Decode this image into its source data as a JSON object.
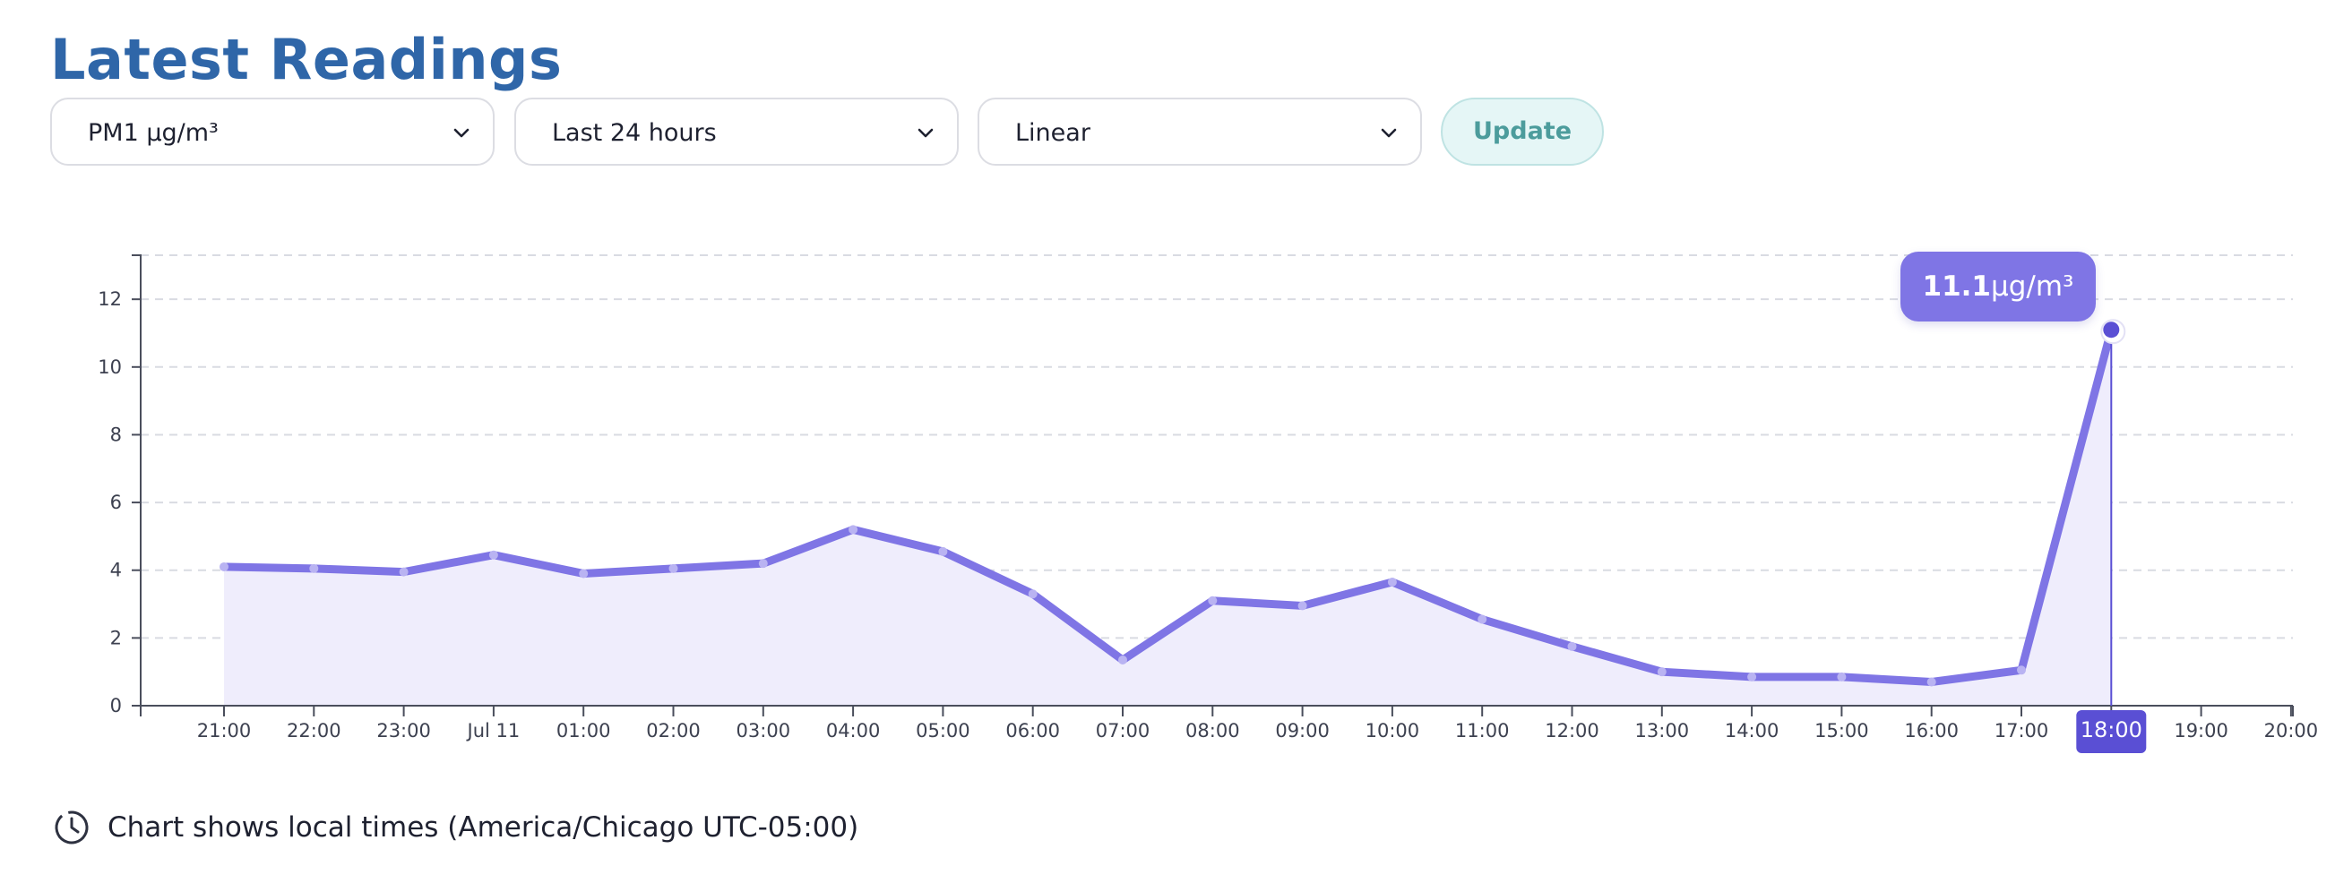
{
  "page": {
    "title": "Latest Readings"
  },
  "controls": {
    "metric": "PM1 µg/m³",
    "range": "Last 24 hours",
    "scale": "Linear",
    "update_label": "Update"
  },
  "tooltip": {
    "value": "11.1",
    "unit": "µg/m³"
  },
  "footer": {
    "note": "Chart shows local times (America/Chicago UTC-05:00)"
  },
  "colors": {
    "line": "#7f75e5",
    "fill": "#efedfc",
    "title": "#2f66a8",
    "highlight": "#5a4fd4"
  },
  "chart_data": {
    "type": "area",
    "x_ticks": [
      "21:00",
      "22:00",
      "23:00",
      "Jul 11",
      "01:00",
      "02:00",
      "03:00",
      "04:00",
      "05:00",
      "06:00",
      "07:00",
      "08:00",
      "09:00",
      "10:00",
      "11:00",
      "12:00",
      "13:00",
      "14:00",
      "15:00",
      "16:00",
      "17:00",
      "18:00",
      "19:00",
      "20:00"
    ],
    "y_ticks": [
      "0",
      "2",
      "4",
      "6",
      "8",
      "10",
      "12"
    ],
    "ylim": [
      0,
      13.3
    ],
    "grid": true,
    "series": [
      {
        "x": [
          "21:00",
          "22:00",
          "23:00",
          "Jul 11",
          "01:00",
          "02:00",
          "03:00",
          "04:00",
          "05:00",
          "06:00",
          "07:00",
          "08:00",
          "09:00",
          "10:00",
          "11:00",
          "12:00",
          "13:00",
          "14:00",
          "15:00",
          "16:00",
          "17:00",
          "18:00"
        ],
        "values": [
          4.1,
          4.05,
          3.95,
          4.45,
          3.9,
          4.05,
          4.2,
          5.2,
          4.55,
          3.3,
          1.35,
          3.1,
          2.95,
          3.65,
          2.55,
          1.75,
          1.0,
          0.85,
          0.85,
          0.7,
          1.05,
          11.1
        ]
      }
    ],
    "highlight_x": "18:00"
  }
}
